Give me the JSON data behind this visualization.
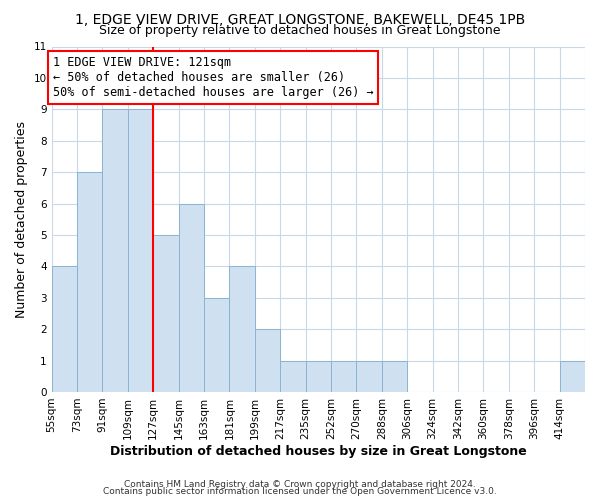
{
  "title": "1, EDGE VIEW DRIVE, GREAT LONGSTONE, BAKEWELL, DE45 1PB",
  "subtitle": "Size of property relative to detached houses in Great Longstone",
  "xlabel": "Distribution of detached houses by size in Great Longstone",
  "ylabel": "Number of detached properties",
  "bin_labels": [
    "55sqm",
    "73sqm",
    "91sqm",
    "109sqm",
    "127sqm",
    "145sqm",
    "163sqm",
    "181sqm",
    "199sqm",
    "217sqm",
    "235sqm",
    "252sqm",
    "270sqm",
    "288sqm",
    "306sqm",
    "324sqm",
    "342sqm",
    "360sqm",
    "378sqm",
    "396sqm",
    "414sqm"
  ],
  "bar_values": [
    4,
    7,
    9,
    9,
    5,
    6,
    3,
    4,
    2,
    1,
    1,
    1,
    1,
    1,
    0,
    0,
    0,
    0,
    0,
    0,
    1
  ],
  "bar_color": "#cfe0f0",
  "bar_edgecolor": "#8ab4d0",
  "red_line_bin_index": 4,
  "ylim": [
    0,
    11
  ],
  "yticks": [
    0,
    1,
    2,
    3,
    4,
    5,
    6,
    7,
    8,
    9,
    10,
    11
  ],
  "annotation_line1": "1 EDGE VIEW DRIVE: 121sqm",
  "annotation_line2": "← 50% of detached houses are smaller (26)",
  "annotation_line3": "50% of semi-detached houses are larger (26) →",
  "footer_line1": "Contains HM Land Registry data © Crown copyright and database right 2024.",
  "footer_line2": "Contains public sector information licensed under the Open Government Licence v3.0.",
  "bg_color": "#ffffff",
  "grid_color": "#c8d8e8",
  "title_fontsize": 10,
  "subtitle_fontsize": 9,
  "axis_label_fontsize": 9,
  "tick_fontsize": 7.5,
  "annotation_fontsize": 8.5,
  "footer_fontsize": 6.5
}
